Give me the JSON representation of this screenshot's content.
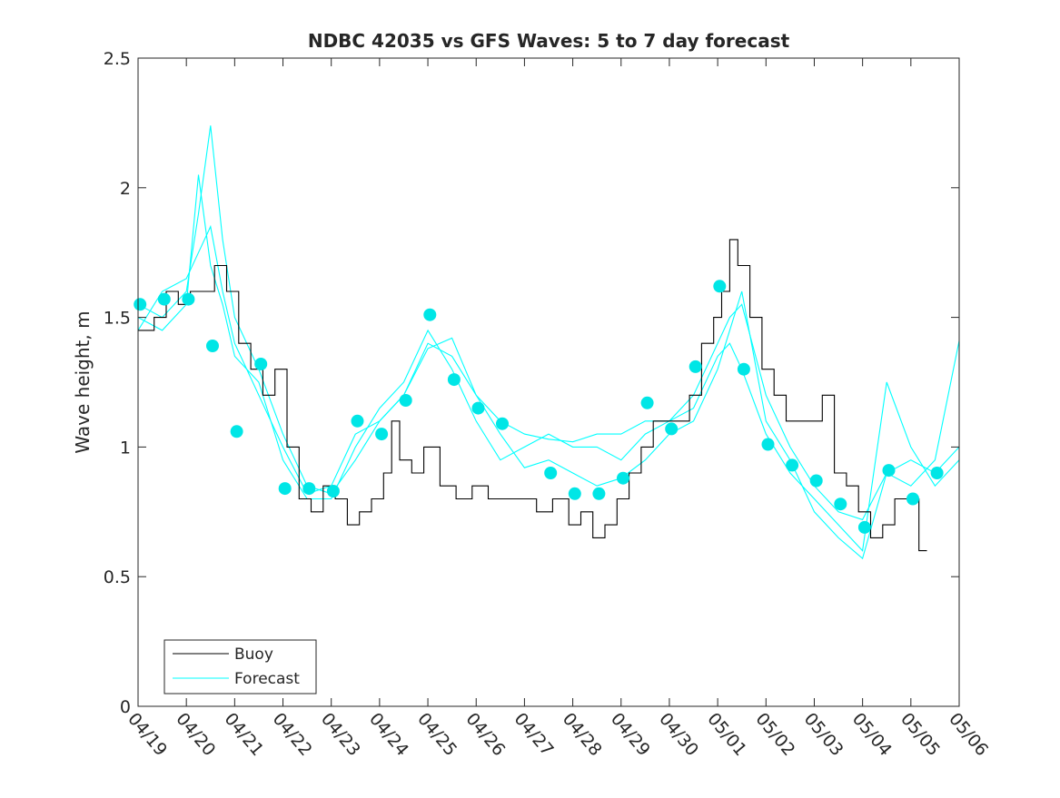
{
  "chart_data": {
    "type": "line",
    "title": "NDBC 42035 vs GFS Waves: 5 to 7 day forecast",
    "xlabel": "",
    "ylabel": "Wave height, m",
    "x_axis_type": "date",
    "xlim": [
      "04/19",
      "05/06"
    ],
    "ylim": [
      0,
      2.5
    ],
    "yticks": [
      "0",
      "0.5",
      "1",
      "1.5",
      "2",
      "2.5"
    ],
    "xticks": [
      "04/19",
      "04/20",
      "04/21",
      "04/22",
      "04/23",
      "04/24",
      "04/25",
      "04/26",
      "04/27",
      "04/28",
      "04/29",
      "04/30",
      "05/01",
      "05/02",
      "05/03",
      "05/04",
      "05/05",
      "05/06"
    ],
    "grid": false,
    "legend_position": "bottom-left",
    "legend": [
      {
        "label": "Buoy",
        "color": "#000000"
      },
      {
        "label": "Forecast",
        "color": "#00FFFF"
      }
    ],
    "colors": {
      "buoy": "#000000",
      "forecast": "#00FFFF",
      "forecast_points": "#00E6E6"
    },
    "series": [
      {
        "name": "Buoy",
        "color": "#000000",
        "style": "stepped line",
        "x": [
          "04/19 00:00",
          "04/19 08:00",
          "04/19 14:00",
          "04/19 20:00",
          "04/20 02:00",
          "04/20 08:00",
          "04/20 14:00",
          "04/20 20:00",
          "04/21 02:00",
          "04/21 08:00",
          "04/21 14:00",
          "04/21 20:00",
          "04/22 02:00",
          "04/22 08:00",
          "04/22 14:00",
          "04/22 20:00",
          "04/23 02:00",
          "04/23 08:00",
          "04/23 14:00",
          "04/23 20:00",
          "04/24 02:00",
          "04/24 06:00",
          "04/24 10:00",
          "04/24 16:00",
          "04/24 22:00",
          "04/25 06:00",
          "04/25 14:00",
          "04/25 22:00",
          "04/26 06:00",
          "04/26 14:00",
          "04/26 22:00",
          "04/27 06:00",
          "04/27 14:00",
          "04/27 22:00",
          "04/28 04:00",
          "04/28 10:00",
          "04/28 16:00",
          "04/28 22:00",
          "04/29 04:00",
          "04/29 10:00",
          "04/29 16:00",
          "04/29 22:00",
          "04/30 04:00",
          "04/30 10:00",
          "04/30 16:00",
          "04/30 22:00",
          "05/01 02:00",
          "05/01 06:00",
          "05/01 10:00",
          "05/01 16:00",
          "05/01 22:00",
          "05/02 04:00",
          "05/02 10:00",
          "05/02 16:00",
          "05/02 22:00",
          "05/03 04:00",
          "05/03 10:00",
          "05/03 16:00",
          "05/03 22:00",
          "05/04 04:00",
          "05/04 10:00",
          "05/04 16:00",
          "05/04 22:00",
          "05/05 04:00",
          "05/05 08:00"
        ],
        "y": [
          1.45,
          1.5,
          1.6,
          1.55,
          1.6,
          1.6,
          1.7,
          1.6,
          1.4,
          1.3,
          1.2,
          1.3,
          1.0,
          0.8,
          0.75,
          0.85,
          0.8,
          0.7,
          0.75,
          0.8,
          0.9,
          1.1,
          0.95,
          0.9,
          1.0,
          0.85,
          0.8,
          0.85,
          0.8,
          0.8,
          0.8,
          0.75,
          0.8,
          0.7,
          0.75,
          0.65,
          0.7,
          0.8,
          0.9,
          1.0,
          1.1,
          1.1,
          1.1,
          1.2,
          1.4,
          1.5,
          1.6,
          1.8,
          1.7,
          1.5,
          1.3,
          1.2,
          1.1,
          1.1,
          1.1,
          1.2,
          0.9,
          0.85,
          0.75,
          0.65,
          0.7,
          0.8,
          0.8,
          0.6,
          0.6
        ]
      },
      {
        "name": "Forecast",
        "color": "#00FFFF",
        "style": "markers",
        "x": [
          "04/19 01:00",
          "04/19 13:00",
          "04/20 01:00",
          "04/20 13:00",
          "04/21 01:00",
          "04/21 13:00",
          "04/22 01:00",
          "04/22 13:00",
          "04/23 01:00",
          "04/23 13:00",
          "04/24 01:00",
          "04/24 13:00",
          "04/25 01:00",
          "04/25 13:00",
          "04/26 01:00",
          "04/26 13:00",
          "04/27 13:00",
          "04/28 01:00",
          "04/28 13:00",
          "04/29 01:00",
          "04/29 13:00",
          "04/30 01:00",
          "04/30 13:00",
          "05/01 01:00",
          "05/01 13:00",
          "05/02 01:00",
          "05/02 13:00",
          "05/03 01:00",
          "05/03 13:00",
          "05/04 01:00",
          "05/04 13:00",
          "05/05 01:00",
          "05/05 13:00"
        ],
        "y": [
          1.55,
          1.57,
          1.57,
          1.39,
          1.06,
          1.32,
          0.84,
          0.84,
          0.83,
          1.1,
          1.05,
          1.18,
          1.51,
          1.26,
          1.15,
          1.09,
          0.9,
          0.82,
          0.82,
          0.88,
          1.17,
          1.07,
          1.31,
          1.62,
          1.3,
          1.01,
          0.93,
          0.87,
          0.78,
          0.69,
          0.91,
          0.8,
          0.9
        ]
      },
      {
        "name": "",
        "color": "#00FFFF",
        "style": "thin line",
        "x": [
          "04/19 00:00",
          "04/19 12:00",
          "04/20 00:00",
          "04/20 06:00",
          "04/20 12:00",
          "04/20 18:00",
          "04/21 00:00",
          "04/21 12:00",
          "04/22 00:00",
          "04/22 12:00",
          "04/23 00:00",
          "04/23 12:00",
          "04/24 00:00",
          "04/24 12:00",
          "04/25 00:00",
          "04/25 12:00",
          "04/26 00:00",
          "04/26 12:00",
          "04/27 00:00",
          "04/27 12:00",
          "04/28 00:00",
          "04/28 12:00",
          "04/29 00:00",
          "04/29 12:00",
          "04/30 00:00",
          "04/30 12:00",
          "05/01 00:00",
          "05/01 06:00",
          "05/01 12:00",
          "05/02 00:00",
          "05/02 12:00",
          "05/03 00:00",
          "05/03 12:00",
          "05/04 00:00",
          "05/04 12:00",
          "05/05 00:00",
          "05/05 12:00",
          "05/06 00:00"
        ],
        "y": [
          1.55,
          1.5,
          1.6,
          1.9,
          2.24,
          1.8,
          1.5,
          1.3,
          1.05,
          0.85,
          0.82,
          0.95,
          1.1,
          1.2,
          1.4,
          1.35,
          1.2,
          1.1,
          1.05,
          1.03,
          1.02,
          1.05,
          1.05,
          1.1,
          1.1,
          1.2,
          1.4,
          1.5,
          1.55,
          1.2,
          1.0,
          0.85,
          0.75,
          0.72,
          0.9,
          0.95,
          0.9,
          1.0
        ]
      },
      {
        "name": "",
        "color": "#00FFFF",
        "style": "thin line",
        "x": [
          "04/19 00:00",
          "04/19 12:00",
          "04/20 00:00",
          "04/20 06:00",
          "04/20 12:00",
          "04/20 18:00",
          "04/21 00:00",
          "04/21 12:00",
          "04/22 00:00",
          "04/22 12:00",
          "04/23 00:00",
          "04/23 12:00",
          "04/24 00:00",
          "04/24 12:00",
          "04/25 00:00",
          "04/25 12:00",
          "04/26 00:00",
          "04/26 12:00",
          "04/27 00:00",
          "04/27 12:00",
          "04/28 00:00",
          "04/28 12:00",
          "04/29 00:00",
          "04/29 12:00",
          "04/30 00:00",
          "04/30 12:00",
          "05/01 00:00",
          "05/01 06:00",
          "05/01 12:00",
          "05/02 00:00",
          "05/02 12:00",
          "05/03 00:00",
          "05/03 12:00",
          "05/04 00:00",
          "05/04 12:00",
          "05/05 00:00",
          "05/05 12:00",
          "05/06 00:00"
        ],
        "y": [
          1.5,
          1.45,
          1.55,
          2.05,
          1.7,
          1.55,
          1.35,
          1.25,
          0.95,
          0.8,
          0.8,
          1.0,
          1.15,
          1.25,
          1.45,
          1.3,
          1.1,
          0.95,
          1.0,
          1.05,
          1.0,
          1.0,
          0.95,
          1.05,
          1.1,
          1.15,
          1.35,
          1.4,
          1.3,
          1.05,
          0.9,
          0.8,
          0.7,
          0.6,
          1.25,
          1.0,
          0.85,
          0.95
        ]
      },
      {
        "name": "",
        "color": "#00FFFF",
        "style": "thin line",
        "x": [
          "04/19 00:00",
          "04/19 12:00",
          "04/20 00:00",
          "04/20 06:00",
          "04/20 12:00",
          "04/20 18:00",
          "04/21 00:00",
          "04/21 12:00",
          "04/22 00:00",
          "04/22 12:00",
          "04/23 00:00",
          "04/23 12:00",
          "04/24 00:00",
          "04/24 12:00",
          "04/25 00:00",
          "04/25 12:00",
          "04/26 00:00",
          "04/26 12:00",
          "04/27 00:00",
          "04/27 12:00",
          "04/28 00:00",
          "04/28 12:00",
          "04/29 00:00",
          "04/29 12:00",
          "04/30 00:00",
          "04/30 12:00",
          "05/01 00:00",
          "05/01 06:00",
          "05/01 12:00",
          "05/02 00:00",
          "05/02 12:00",
          "05/03 00:00",
          "05/03 12:00",
          "05/04 00:00",
          "05/04 12:00",
          "05/05 00:00",
          "05/05 12:00",
          "05/06 00:00"
        ],
        "y": [
          1.45,
          1.6,
          1.65,
          1.75,
          1.85,
          1.6,
          1.4,
          1.2,
          1.0,
          0.82,
          0.85,
          1.05,
          1.1,
          1.2,
          1.38,
          1.42,
          1.2,
          1.05,
          0.92,
          0.95,
          0.9,
          0.85,
          0.88,
          0.95,
          1.05,
          1.1,
          1.3,
          1.45,
          1.6,
          1.1,
          0.95,
          0.75,
          0.65,
          0.57,
          0.9,
          0.85,
          0.95,
          1.41
        ]
      }
    ]
  }
}
